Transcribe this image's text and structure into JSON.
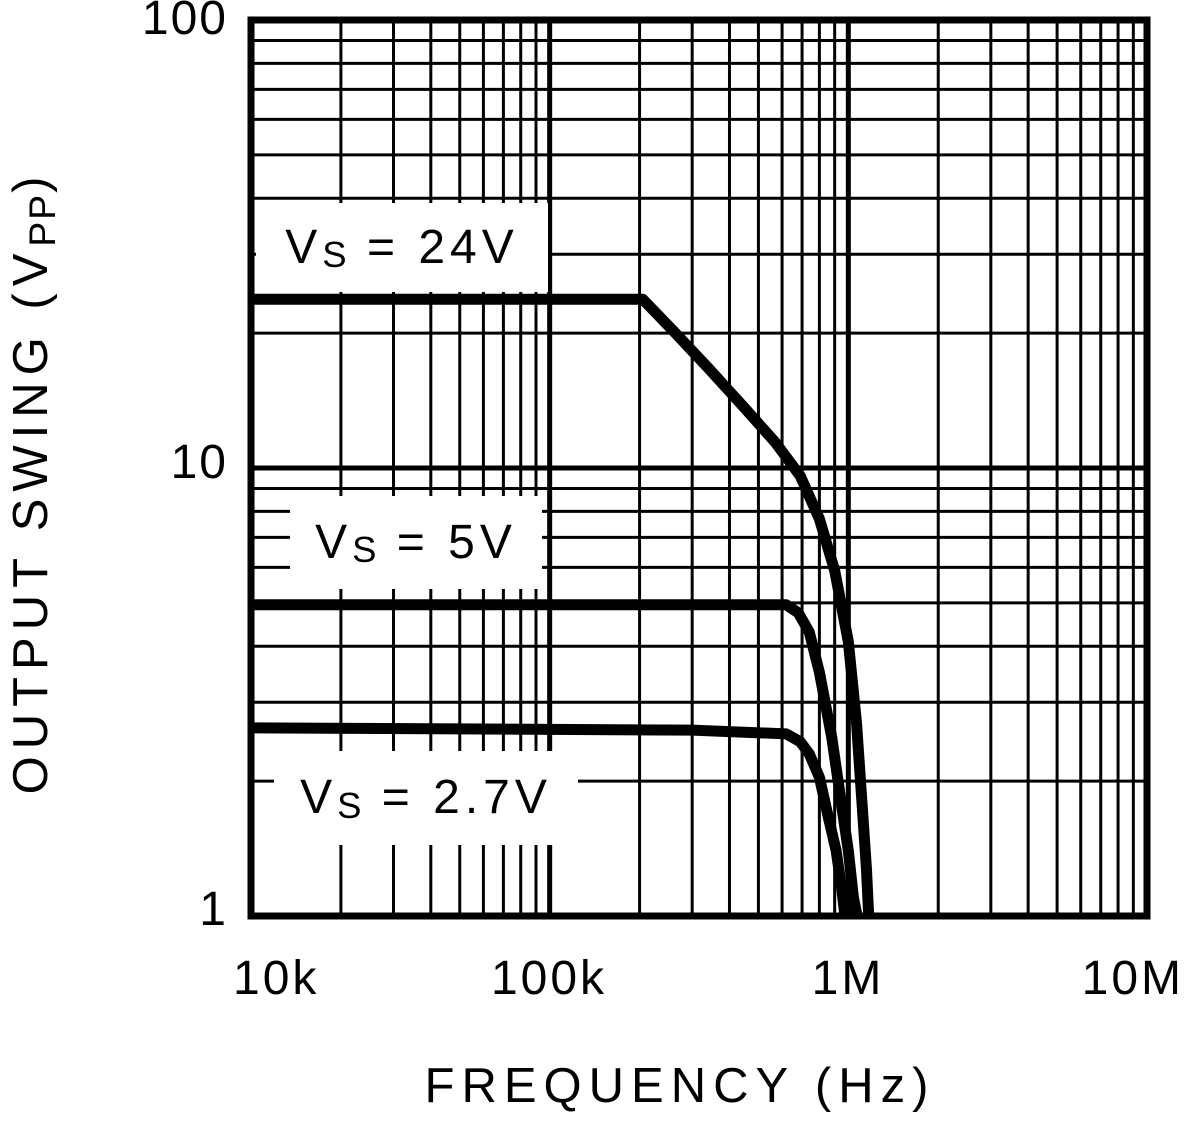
{
  "chart_data": {
    "type": "line",
    "title": "",
    "xlabel": "FREQUENCY (Hz)",
    "ylabel": "OUTPUT SWING (VPP)",
    "ylabel_parts": {
      "pre": "OUTPUT SWING (V",
      "sub": "PP",
      "post": ")"
    },
    "x_scale": "log",
    "y_scale": "log",
    "xlim": [
      10000,
      10000000
    ],
    "ylim": [
      1,
      100
    ],
    "grid": "full log minor grid, both axes",
    "legend_position": "inline white-boxed labels on plot",
    "x_ticks": [
      {
        "value": 10000,
        "label": "10k"
      },
      {
        "value": 100000,
        "label": "100k"
      },
      {
        "value": 1000000,
        "label": "1M"
      },
      {
        "value": 10000000,
        "label": "10M"
      }
    ],
    "y_ticks": [
      {
        "value": 100,
        "label": "100"
      },
      {
        "value": 10,
        "label": "10"
      },
      {
        "value": 1,
        "label": "1"
      }
    ],
    "colors": {
      "curve": "#000000",
      "grid": "#000000",
      "background": "#ffffff",
      "text": "#000000"
    },
    "series": [
      {
        "name": "Vs = 24V",
        "label_parts": {
          "pre": "V",
          "sub": "S",
          "rest": " = 24V"
        },
        "flat_level_vpp": 23.8,
        "points": [
          [
            10000,
            23.8
          ],
          [
            205000,
            23.8
          ],
          [
            260000,
            20.2
          ],
          [
            340000,
            16.7
          ],
          [
            450000,
            13.6
          ],
          [
            570000,
            11.4
          ],
          [
            690000,
            9.6
          ],
          [
            800000,
            7.7
          ],
          [
            900000,
            5.9
          ],
          [
            1000000,
            4.1
          ],
          [
            1065000,
            2.7
          ],
          [
            1110000,
            1.8
          ],
          [
            1150000,
            1.27
          ],
          [
            1170000,
            1.0
          ]
        ]
      },
      {
        "name": "Vs = 5V",
        "label_parts": {
          "pre": "V",
          "sub": "S",
          "rest": " = 5V"
        },
        "flat_level_vpp": 4.95,
        "points": [
          [
            10000,
            4.95
          ],
          [
            620000,
            4.95
          ],
          [
            680000,
            4.75
          ],
          [
            740000,
            4.3
          ],
          [
            800000,
            3.5
          ],
          [
            880000,
            2.5
          ],
          [
            940000,
            1.85
          ],
          [
            1000000,
            1.4
          ],
          [
            1040000,
            1.1
          ],
          [
            1070000,
            1.0
          ]
        ]
      },
      {
        "name": "Vs = 2.7V",
        "label_parts": {
          "pre": "V",
          "sub": "S",
          "rest": " = 2.7V"
        },
        "flat_level_vpp": 2.6,
        "points": [
          [
            10000,
            2.63
          ],
          [
            300000,
            2.6
          ],
          [
            620000,
            2.55
          ],
          [
            690000,
            2.45
          ],
          [
            740000,
            2.3
          ],
          [
            800000,
            2.04
          ],
          [
            850000,
            1.7
          ],
          [
            910000,
            1.4
          ],
          [
            950000,
            1.15
          ],
          [
            975000,
            1.0
          ]
        ]
      }
    ]
  }
}
